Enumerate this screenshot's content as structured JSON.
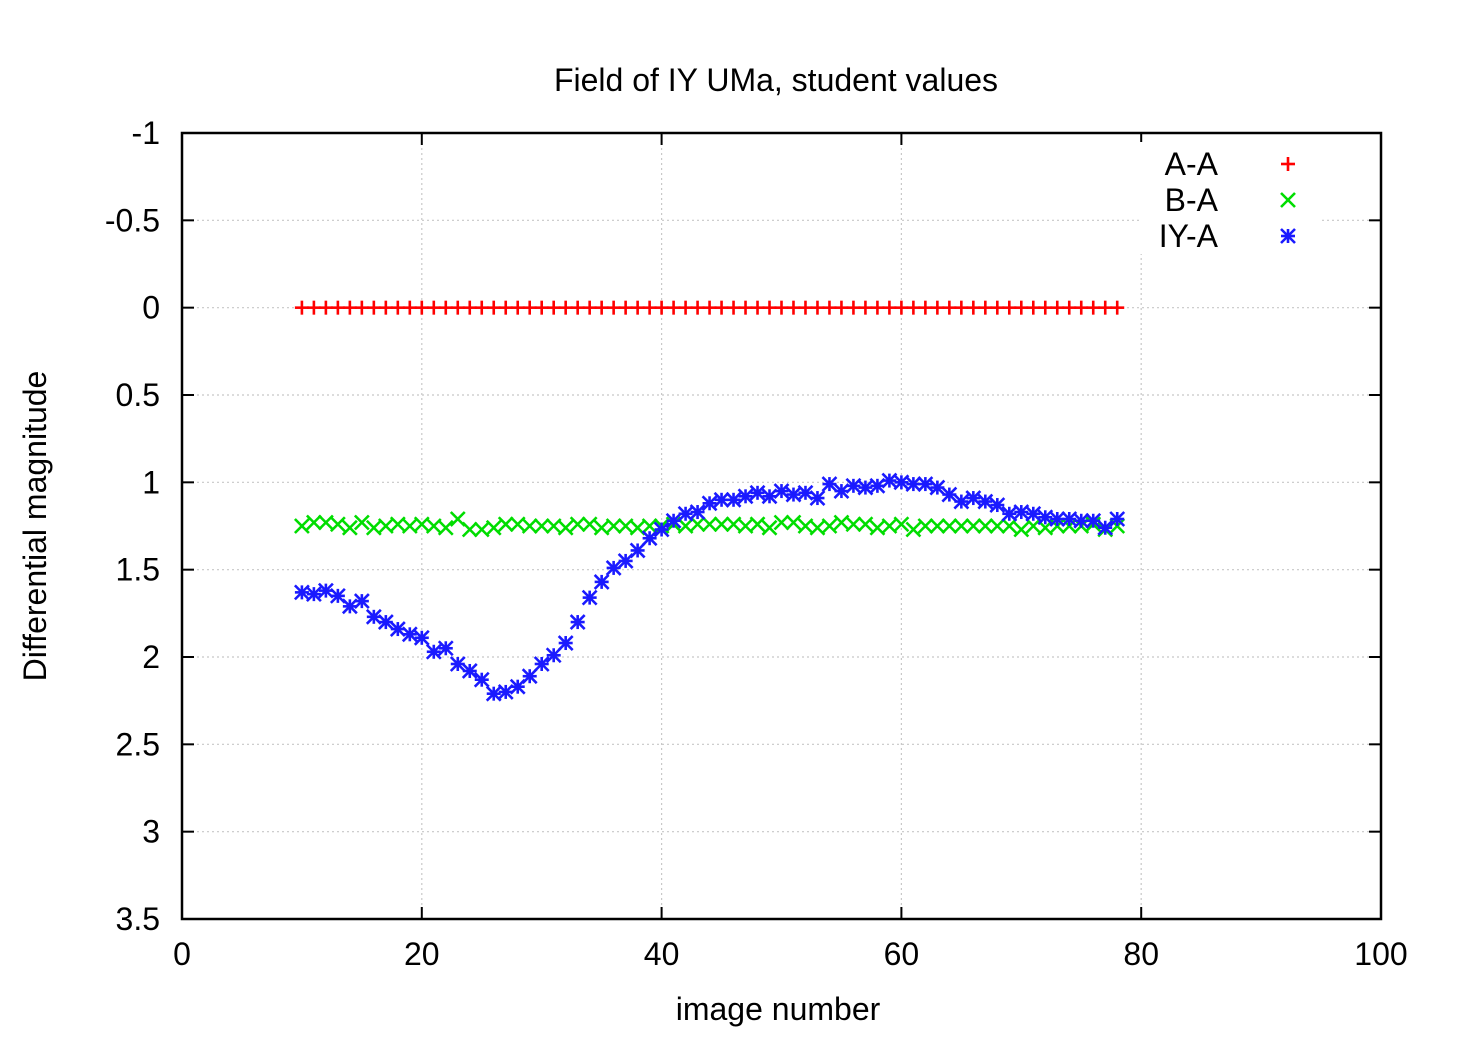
{
  "chart_data": {
    "type": "scatter",
    "title": "Field of IY UMa, student values",
    "xlabel": "image number",
    "ylabel": "Differential magnitude",
    "xlim": [
      0,
      100
    ],
    "ylim": [
      -1,
      3.5
    ],
    "y_reversed": true,
    "grid": true,
    "legend_position": "top-right",
    "xticks": [
      0,
      20,
      40,
      60,
      80,
      100
    ],
    "yticks": [
      -1,
      -0.5,
      0,
      0.5,
      1,
      1.5,
      2,
      2.5,
      3,
      3.5
    ],
    "series": [
      {
        "name": "A-A",
        "marker": "plus",
        "color": "#ff0000",
        "x": [
          10,
          11,
          12,
          13,
          14,
          15,
          16,
          17,
          18,
          19,
          20,
          21,
          22,
          23,
          24,
          25,
          26,
          27,
          28,
          29,
          30,
          31,
          32,
          33,
          34,
          35,
          36,
          37,
          38,
          39,
          40,
          41,
          42,
          43,
          44,
          45,
          46,
          47,
          48,
          49,
          50,
          51,
          52,
          53,
          54,
          55,
          56,
          57,
          58,
          59,
          60,
          61,
          62,
          63,
          64,
          65,
          66,
          67,
          68,
          69,
          70,
          71,
          72,
          73,
          74,
          75,
          76,
          77,
          78
        ],
        "y": [
          0,
          0,
          0,
          0,
          0,
          0,
          0,
          0,
          0,
          0,
          0,
          0,
          0,
          0,
          0,
          0,
          0,
          0,
          0,
          0,
          0,
          0,
          0,
          0,
          0,
          0,
          0,
          0,
          0,
          0,
          0,
          0,
          0,
          0,
          0,
          0,
          0,
          0,
          0,
          0,
          0,
          0,
          0,
          0,
          0,
          0,
          0,
          0,
          0,
          0,
          0,
          0,
          0,
          0,
          0,
          0,
          0,
          0,
          0,
          0,
          0,
          0,
          0,
          0,
          0,
          0,
          0,
          0,
          0
        ]
      },
      {
        "name": "B-A",
        "marker": "cross",
        "color": "#00dd00",
        "x": [
          10,
          11,
          12,
          13,
          14,
          15,
          16,
          17,
          18,
          19,
          20,
          21,
          22,
          23,
          24,
          25,
          26,
          27,
          28,
          29,
          30,
          31,
          32,
          33,
          34,
          35,
          36,
          37,
          38,
          39,
          40,
          41,
          42,
          43,
          44,
          45,
          46,
          47,
          48,
          49,
          50,
          51,
          52,
          53,
          54,
          55,
          56,
          57,
          58,
          59,
          60,
          61,
          62,
          63,
          64,
          65,
          66,
          67,
          68,
          69,
          70,
          71,
          72,
          73,
          74,
          75,
          76,
          77,
          78
        ],
        "y": [
          1.25,
          1.23,
          1.23,
          1.24,
          1.26,
          1.23,
          1.26,
          1.25,
          1.24,
          1.25,
          1.24,
          1.25,
          1.26,
          1.21,
          1.27,
          1.27,
          1.26,
          1.24,
          1.24,
          1.25,
          1.25,
          1.25,
          1.26,
          1.24,
          1.24,
          1.26,
          1.25,
          1.25,
          1.26,
          1.25,
          1.25,
          1.24,
          1.25,
          1.24,
          1.24,
          1.24,
          1.24,
          1.25,
          1.24,
          1.26,
          1.23,
          1.23,
          1.25,
          1.26,
          1.25,
          1.23,
          1.24,
          1.24,
          1.26,
          1.25,
          1.24,
          1.27,
          1.25,
          1.25,
          1.25,
          1.25,
          1.25,
          1.25,
          1.25,
          1.25,
          1.27,
          1.25,
          1.26,
          1.25,
          1.25,
          1.25,
          1.24,
          1.27,
          1.25
        ]
      },
      {
        "name": "IY-A",
        "marker": "star",
        "color": "#1a1aff",
        "x": [
          10,
          11,
          12,
          13,
          14,
          15,
          16,
          17,
          18,
          19,
          20,
          21,
          22,
          23,
          24,
          25,
          26,
          27,
          28,
          29,
          30,
          31,
          32,
          33,
          34,
          35,
          36,
          37,
          38,
          39,
          40,
          41,
          42,
          43,
          44,
          45,
          46,
          47,
          48,
          49,
          50,
          51,
          52,
          53,
          54,
          55,
          56,
          57,
          58,
          59,
          60,
          61,
          62,
          63,
          64,
          65,
          66,
          67,
          68,
          69,
          70,
          71,
          72,
          73,
          74,
          75,
          76,
          77,
          78
        ],
        "y": [
          1.63,
          1.64,
          1.62,
          1.65,
          1.71,
          1.68,
          1.77,
          1.8,
          1.84,
          1.87,
          1.89,
          1.97,
          1.95,
          2.04,
          2.08,
          2.13,
          2.21,
          2.2,
          2.17,
          2.11,
          2.04,
          1.99,
          1.92,
          1.8,
          1.66,
          1.57,
          1.49,
          1.45,
          1.39,
          1.32,
          1.27,
          1.22,
          1.18,
          1.17,
          1.12,
          1.1,
          1.1,
          1.08,
          1.06,
          1.08,
          1.05,
          1.07,
          1.06,
          1.09,
          1.01,
          1.05,
          1.02,
          1.03,
          1.02,
          0.99,
          1.0,
          1.01,
          1.01,
          1.03,
          1.07,
          1.11,
          1.09,
          1.11,
          1.13,
          1.18,
          1.17,
          1.18,
          1.2,
          1.21,
          1.21,
          1.22,
          1.22,
          1.26,
          1.21
        ]
      }
    ]
  }
}
